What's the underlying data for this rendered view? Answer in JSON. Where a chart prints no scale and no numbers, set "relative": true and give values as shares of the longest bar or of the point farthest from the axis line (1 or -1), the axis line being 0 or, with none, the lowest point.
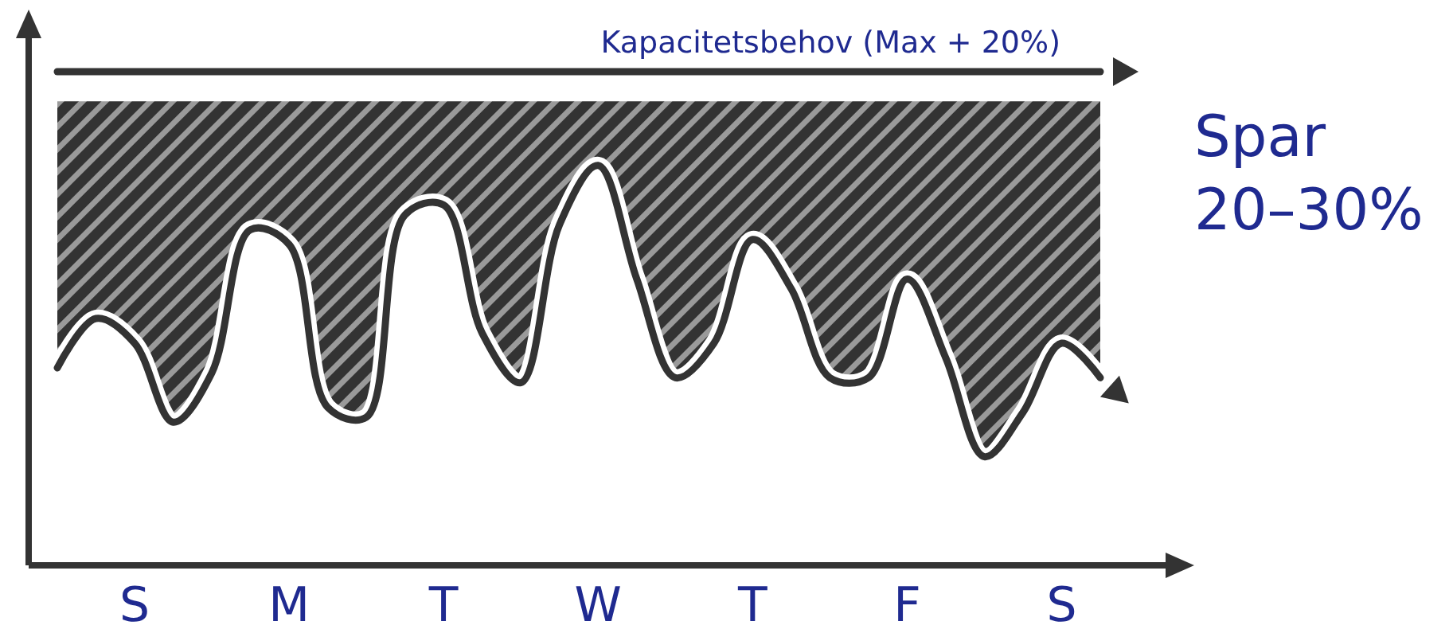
{
  "chart_data": {
    "type": "line",
    "relative": true,
    "tick_labels": "x",
    "categories": [
      null,
      null,
      "S",
      null,
      null,
      null,
      "M",
      null,
      null,
      null,
      "T",
      null,
      null,
      null,
      "W",
      null,
      null,
      null,
      "T",
      null,
      null,
      null,
      "F",
      null,
      null,
      null,
      "S",
      null
    ],
    "series": [
      {
        "color": "#333333",
        "values": [
          0.4,
          0.5,
          0.45,
          0.29,
          0.39,
          0.68,
          0.65,
          0.32,
          0.3,
          0.71,
          0.73,
          0.47,
          0.37,
          0.69,
          0.81,
          0.58,
          0.38,
          0.45,
          0.66,
          0.56,
          0.38,
          0.38,
          0.58,
          0.42,
          0.22,
          0.31,
          0.45,
          0.38
        ],
        "lower": [
          0.4,
          0.5,
          0.45,
          0.29,
          0.39,
          0.68,
          0.65,
          0.32,
          0.3,
          0.71,
          0.73,
          0.47,
          0.37,
          0.69,
          0.81,
          0.58,
          0.38,
          0.45,
          0.66,
          0.56,
          0.38,
          0.38,
          0.58,
          0.42,
          0.22,
          0.31,
          0.45,
          0.38
        ],
        "upper": [
          0.94,
          0.94,
          0.94,
          0.94,
          0.94,
          0.94,
          0.94,
          0.94,
          0.94,
          0.94,
          0.94,
          0.94,
          0.94,
          0.94,
          0.94,
          0.94,
          0.94,
          0.94,
          0.94,
          0.94,
          0.94,
          0.94,
          0.94,
          0.94,
          0.94,
          0.94,
          0.94,
          0.94
        ]
      },
      {
        "name": "Kapacitetsbehov (Max + 20%)",
        "color": "#333333",
        "values": [
          1,
          1,
          1,
          1,
          1,
          1,
          1,
          1,
          1,
          1,
          1,
          1,
          1,
          1,
          1,
          1,
          1,
          1,
          1,
          1,
          1,
          1,
          1,
          1,
          1,
          1,
          1,
          1
        ]
      }
    ],
    "annotations": [
      "Spar 20–30%"
    ]
  }
}
